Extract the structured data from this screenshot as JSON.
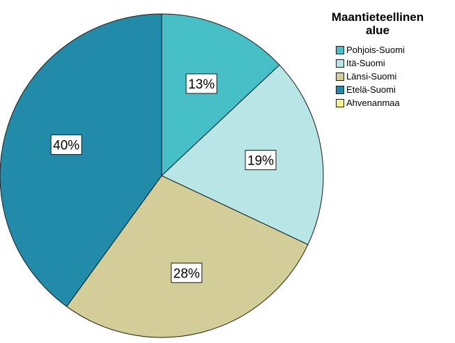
{
  "chart_data": {
    "type": "pie",
    "legend_title": [
      "Maantieteellinen",
      "alue"
    ],
    "legend_placement": "top-right",
    "categories": [
      "Pohjois-Suomi",
      "Itä-Suomi",
      "Länsi-Suomi",
      "Etelä-Suomi",
      "Ahvenanmaa"
    ],
    "values": [
      13,
      19,
      28,
      40,
      0
    ],
    "labels": [
      "13%",
      "19%",
      "28%",
      "40%",
      ""
    ],
    "colors": [
      "#46bfc6",
      "#b8e5e6",
      "#d3ce98",
      "#218ba9",
      "#f8f28a"
    ],
    "start_angle_deg": 0,
    "direction": "clockwise"
  }
}
